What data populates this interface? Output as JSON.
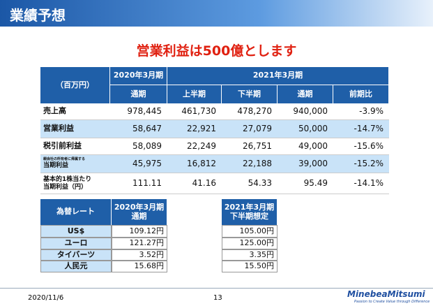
{
  "header": {
    "title": "業績予想"
  },
  "subtitle": "営業利益は500億とします",
  "main_table": {
    "unit": "（百万円）",
    "col_group_prev": "2020年3月期",
    "col_group_next": "2021年3月期",
    "columns": [
      "通期",
      "上半期",
      "下半期",
      "通期",
      "前期比"
    ],
    "rows": [
      {
        "label": [
          "売上高"
        ],
        "cells": [
          "978,445",
          "461,730",
          "478,270",
          "940,000",
          "-3.9%"
        ]
      },
      {
        "label": [
          "営業利益"
        ],
        "cells": [
          "58,647",
          "22,921",
          "27,079",
          "50,000",
          "-14.7%"
        ]
      },
      {
        "label": [
          "税引前利益"
        ],
        "cells": [
          "58,089",
          "22,249",
          "26,751",
          "49,000",
          "-15.6%"
        ]
      },
      {
        "label": [
          "親会社の所有者に帰属する",
          "当期利益"
        ],
        "cells": [
          "45,975",
          "16,812",
          "22,188",
          "39,000",
          "-15.2%"
        ]
      },
      {
        "label": [
          "基本的1株当たり",
          "当期利益（円）"
        ],
        "cells": [
          "111.11",
          "41.16",
          "54.33",
          "95.49",
          "-14.1%"
        ]
      }
    ]
  },
  "fx_table": {
    "label_header": "為替レート",
    "prev_header": [
      "2020年3月期",
      "通期"
    ],
    "next_header": [
      "2021年3月期",
      "下半期想定"
    ],
    "rows": [
      {
        "label": "US$",
        "prev": "109.12円",
        "next": "105.00円"
      },
      {
        "label": "ユーロ",
        "prev": "121.27円",
        "next": "125.00円"
      },
      {
        "label": "タイバーツ",
        "prev": "3.52円",
        "next": "3.35円"
      },
      {
        "label": "人民元",
        "prev": "15.68円",
        "next": "15.50円"
      }
    ]
  },
  "footer": {
    "date": "2020/11/6",
    "page": "13",
    "logo": "MinebeaMitsumi",
    "tagline": "Passion to Create Value through Difference"
  }
}
